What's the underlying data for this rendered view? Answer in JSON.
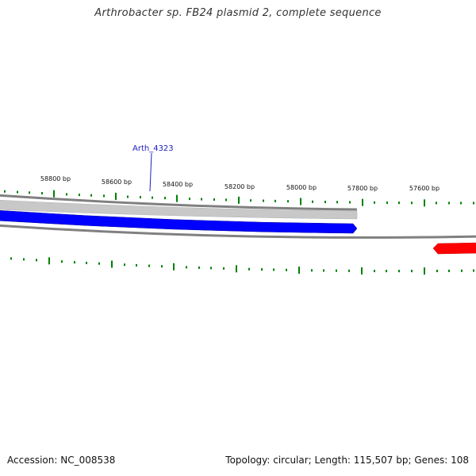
{
  "title": "Arthrobacter sp. FB24 plasmid 2, complete sequence",
  "footer": {
    "accession": "Accession: NC_008538",
    "summary": "Topology: circular; Length: 115,507 bp; Genes: 108"
  },
  "map": {
    "colors": {
      "backbone": "#808080",
      "gc_band": "#c8c8c8",
      "forward_gene": "#0000ff",
      "reverse_gene": "#ff0000",
      "ticks": "#008000",
      "gene_label": "#2020c0",
      "tick_label": "#111111"
    },
    "scale_labels": [
      "58800 bp",
      "58600 bp",
      "58400 bp",
      "58200 bp",
      "58000 bp",
      "57800 bp",
      "57600 bp"
    ],
    "genes": [
      {
        "label": "Arth_4323",
        "strand": "forward",
        "color_key": "forward_gene"
      },
      {
        "label": "",
        "strand": "reverse",
        "color_key": "reverse_gene"
      }
    ]
  }
}
